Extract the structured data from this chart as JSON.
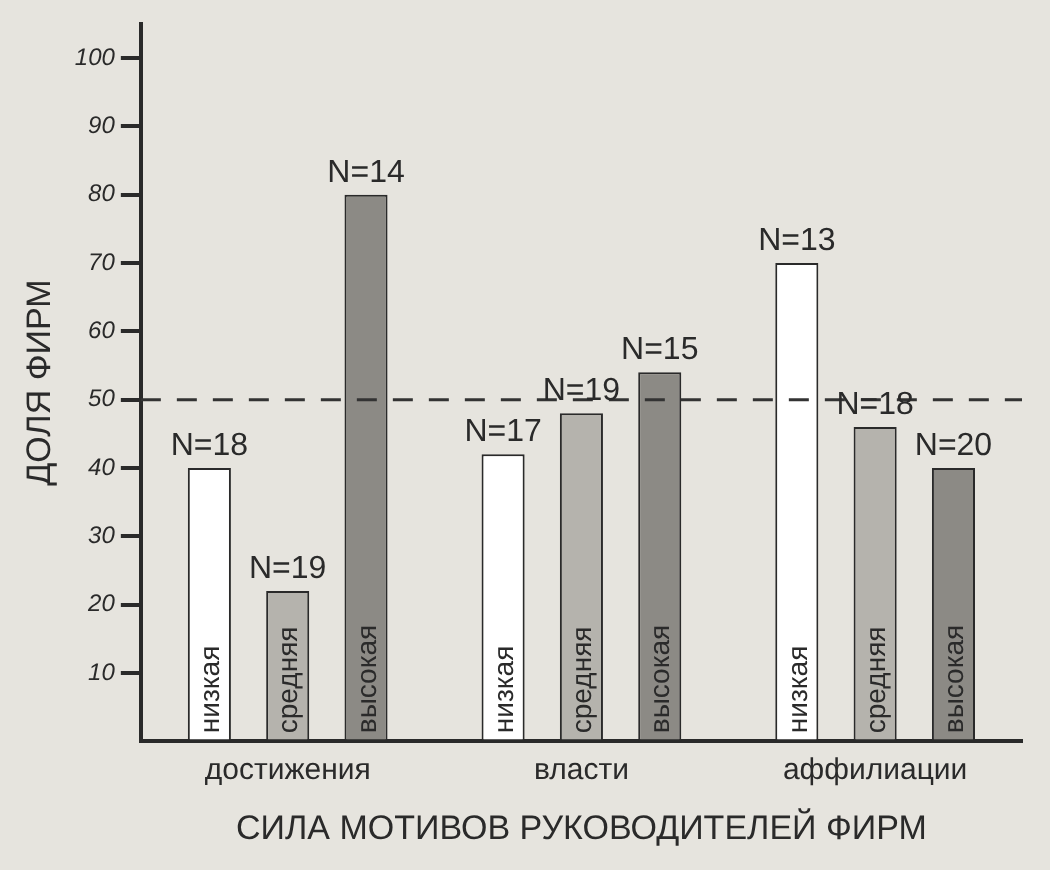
{
  "chart_data": {
    "type": "bar",
    "categories": [
      "достижения",
      "власти",
      "аффилиации"
    ],
    "series": [
      {
        "name": "низкая",
        "color": "#ffffff",
        "values": [
          40,
          42,
          70
        ]
      },
      {
        "name": "средняя",
        "color": "#b5b3ad",
        "values": [
          22,
          48,
          46
        ]
      },
      {
        "name": "высокая",
        "color": "#8c8a85",
        "values": [
          80,
          54,
          40
        ]
      }
    ],
    "ylim": [
      0,
      105
    ],
    "yticks": [
      10,
      20,
      30,
      40,
      50,
      60,
      70,
      80,
      90,
      100
    ],
    "ylabel": "ДОЛЯ ФИРМ",
    "xlabel": "СИЛА МОТИВОВ РУКОВОДИТЕЛЕЙ ФИРМ",
    "annotations": [
      "N=18",
      "N=19",
      "N=14",
      "N=17",
      "N=19",
      "N=15",
      "N=13",
      "N=18",
      "N=20"
    ],
    "ref_lines": [
      {
        "axis": "y",
        "value": 50,
        "line_style": "dashed",
        "color": "#333333"
      }
    ],
    "grid": false,
    "legend": false
  }
}
